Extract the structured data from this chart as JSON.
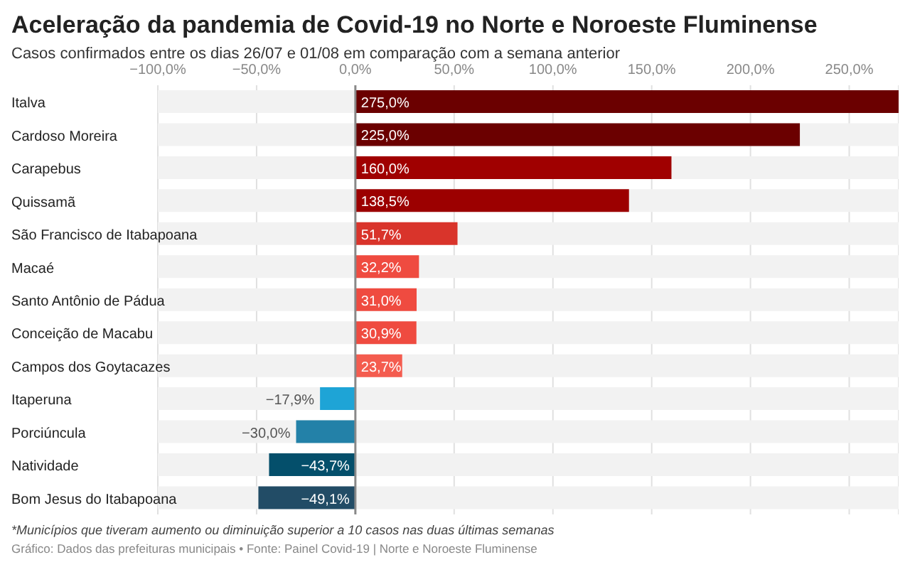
{
  "chart_data": {
    "type": "bar",
    "orientation": "horizontal",
    "title": "Aceleração da pandemia de Covid-19 no Norte e Noroeste Fluminense",
    "subtitle": "Casos confirmados entre os dias 26/07 e 01/08 em comparação com a semana anterior",
    "categories": [
      "Italva",
      "Cardoso Moreira",
      "Carapebus",
      "Quissamã",
      "São Francisco de Itabapoana",
      "Macaé",
      "Santo Antônio de Pádua",
      "Conceição de Macabu",
      "Campos dos Goytacazes",
      "Itaperuna",
      "Porciúncula",
      "Natividade",
      "Bom Jesus do Itabapoana"
    ],
    "values": [
      275,
      225,
      160,
      138.5,
      51.7,
      32.2,
      31,
      30.9,
      23.7,
      -17.9,
      -30,
      -43.7,
      -49.1
    ],
    "colors": [
      "#6b0000",
      "#6b0000",
      "#a00000",
      "#9c0000",
      "#d9342b",
      "#ef4b40",
      "#ef4b40",
      "#ef4b40",
      "#f45c4f",
      "#1ea4d6",
      "#2381a8",
      "#044f6b",
      "#224c66"
    ],
    "value_labels": [
      "275,0%",
      "225,0%",
      "160,0%",
      "138,5%",
      "51,7%",
      "32,2%",
      "31,0%",
      "30,9%",
      "23,7%",
      "−17,9%",
      "−30,0%",
      "−43,7%",
      "−49,1%"
    ],
    "xlim": [
      -100,
      275
    ],
    "xticks": [
      {
        "value": -100,
        "label": "−100,0%"
      },
      {
        "value": -50,
        "label": "−50,0%"
      },
      {
        "value": 0,
        "label": "0,0%"
      },
      {
        "value": 50,
        "label": "50,0%"
      },
      {
        "value": 100,
        "label": "100,0%"
      },
      {
        "value": 150,
        "label": "150,0%"
      },
      {
        "value": 200,
        "label": "200,0%"
      },
      {
        "value": 250,
        "label": "250,0%"
      }
    ],
    "grid": "x",
    "ref_lines": [
      {
        "axis": "x",
        "value": 0,
        "color": "#888888"
      }
    ],
    "annotations": [
      "*Municípios que tiveram aumento ou diminuição superior a 10 casos nas duas últimas semanas",
      "Gráfico: Dados das prefeituras municipais • Fonte: Painel Covid-19 | Norte e Noroeste Fluminense"
    ]
  }
}
